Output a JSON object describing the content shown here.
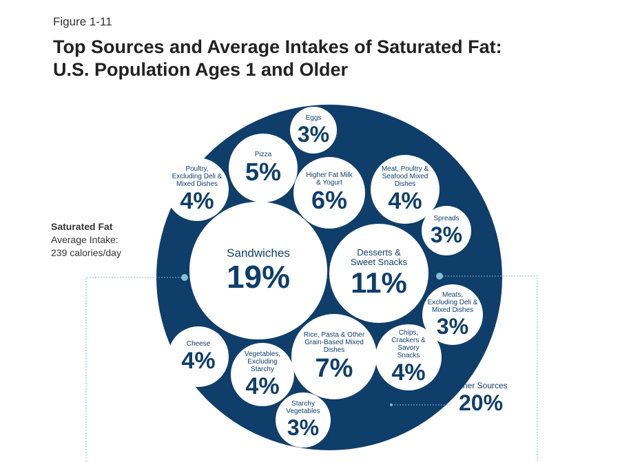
{
  "chart_data": {
    "type": "bubble",
    "figure_label": "Figure 1-11",
    "title": "Top Sources and Average Intakes of Saturated Fat: U.S. Population Ages 1 and Older",
    "intake": {
      "nutrient": "Saturated Fat",
      "label": "Average Intake:",
      "value": "239 calories/day"
    },
    "color": "#0f3e6a",
    "categories": [
      "Eggs",
      "Pizza",
      "Poultry, Excluding Deli & Mixed Dishes",
      "Higher Fat Milk & Yogurt",
      "Meat, Poultry & Seafood Mixed Dishes",
      "Spreads",
      "Sandwiches",
      "Desserts & Sweet Snacks",
      "Meats, Excluding Deli & Mixed Dishes",
      "Cheese",
      "Vegetables, Excluding Starchy",
      "Rice, Pasta & Other Grain-Based Mixed Dishes",
      "Chips, Crackers & Savory Snacks",
      "Starchy Vegetables",
      "Other Sources"
    ],
    "values": [
      3,
      5,
      4,
      6,
      4,
      3,
      19,
      11,
      3,
      4,
      4,
      7,
      4,
      3,
      20
    ],
    "value_labels": [
      "3%",
      "5%",
      "4%",
      "6%",
      "4%",
      "3%",
      "19%",
      "11%",
      "3%",
      "4%",
      "4%",
      "7%",
      "4%",
      "3%",
      "20%"
    ]
  }
}
